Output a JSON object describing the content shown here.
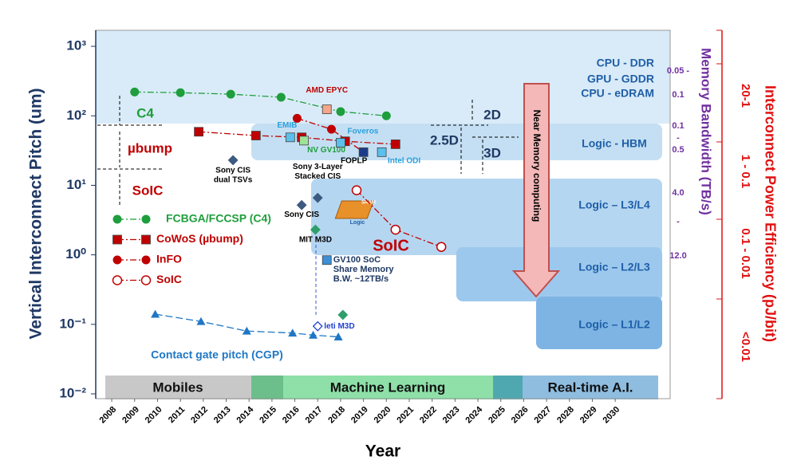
{
  "chart_data": {
    "type": "scatter",
    "x_label": "Year",
    "y_label": "Vertical Interconnect Pitch (um)",
    "xlim": [
      2007.3,
      2032.4
    ],
    "xticks": [
      2008,
      2009,
      2010,
      2011,
      2012,
      2013,
      2014,
      2015,
      2016,
      2017,
      2018,
      2019,
      2020,
      2021,
      2022,
      2023,
      2024,
      2025,
      2026,
      2027,
      2028,
      2029,
      2030
    ],
    "ylim": [
      0.01,
      1700
    ],
    "log_y": true,
    "yticks": [
      {
        "value": 0.01,
        "label": "10⁻²"
      },
      {
        "value": 0.1,
        "label": "10⁻¹"
      },
      {
        "value": 1,
        "label": "10⁰"
      },
      {
        "value": 10,
        "label": "10¹"
      },
      {
        "value": 100,
        "label": "10²"
      },
      {
        "value": 1000,
        "label": "10³"
      }
    ],
    "series": [
      {
        "name": "FCBGA/FCCSP (C4)",
        "color": "#1e9e3c",
        "marker": "circle",
        "x": [
          2009,
          2011,
          2013.2,
          2015.4,
          2018,
          2020
        ],
        "values": [
          220,
          215,
          205,
          185,
          115,
          100
        ]
      },
      {
        "name": "CoWoS (µbump)",
        "color": "#c00000",
        "marker": "square",
        "x": [
          2011.8,
          2014.3,
          2016.3,
          2018.2,
          2020.4
        ],
        "values": [
          59,
          52,
          49,
          43,
          39
        ]
      },
      {
        "name": "InFO",
        "color": "#c00000",
        "marker": "circle",
        "x": [
          2016.1,
          2017.6,
          2019
        ],
        "values": [
          92,
          64,
          30
        ]
      },
      {
        "name": "SoIC",
        "color": "#c00000",
        "marker": "open-circle",
        "x": [
          2018.7,
          2020.4,
          2022.4
        ],
        "values": [
          8.5,
          2.3,
          1.3
        ]
      },
      {
        "name": "Contact gate pitch (CGP)",
        "color": "#1f77c4",
        "marker": "triangle",
        "x": [
          2009.9,
          2011.9,
          2013.9,
          2015.9,
          2016.8,
          2017.9
        ],
        "values": [
          0.14,
          0.11,
          0.08,
          0.075,
          0.07,
          0.066
        ]
      }
    ],
    "points": [
      {
        "label": [
          "AMD EPYC"
        ],
        "x": 2017.4,
        "value": 124,
        "marker": "square",
        "color": "#f4a58a",
        "label_color": "#c00000"
      },
      {
        "label": [
          "EMIB"
        ],
        "x": 2015.8,
        "value": 49,
        "marker": "square",
        "color": "#5bc0eb",
        "label_color": "#2aa0dc"
      },
      {
        "label": [
          "NV GV100"
        ],
        "x": 2016.4,
        "value": 44,
        "marker": "square",
        "color": "#9fe29a",
        "label_color": "#1e9e3c"
      },
      {
        "label": [
          "Foveros"
        ],
        "x": 2018,
        "value": 41,
        "marker": "square",
        "color": "#5bc0eb",
        "label_color": "#2aa0dc"
      },
      {
        "label": [
          "FOPLP"
        ],
        "x": 2019,
        "value": 30,
        "marker": "square",
        "color": "#1a3a8a",
        "label_color": "#000000"
      },
      {
        "label": [
          "Intel ODI"
        ],
        "x": 2019.8,
        "value": 30,
        "marker": "square",
        "color": "#5bc0eb",
        "label_color": "#2aa0dc"
      },
      {
        "label": [
          "Sony CIS",
          "dual TSVs"
        ],
        "x": 2013.3,
        "value": 23,
        "marker": "diamond",
        "color": "#3d5a80",
        "label_color": "#000000"
      },
      {
        "label": [
          "Sony 3-Layer",
          "Stacked CIS"
        ],
        "x": 2017,
        "value": 6.6,
        "marker": "diamond",
        "color": "#3d5a80",
        "label_color": "#000000"
      },
      {
        "label": [
          "Sony CIS"
        ],
        "x": 2016.3,
        "value": 5.2,
        "marker": "diamond",
        "color": "#3d5a80",
        "label_color": "#000000"
      },
      {
        "label": [
          "MIT M3D"
        ],
        "x": 2016.9,
        "value": 2.3,
        "marker": "diamond",
        "color": "#2e9e6b",
        "label_color": "#000000"
      },
      {
        "label": [
          "GV100 SoC",
          "Share Memory",
          "B.W. ~12TB/s"
        ],
        "x": 2017.4,
        "value": 0.84,
        "marker": "square",
        "color": "#3d8fd6",
        "label_color": "#1f3864"
      },
      {
        "label": [
          "leti M3D"
        ],
        "x": 2017,
        "value": 0.094,
        "marker": "open-diamond",
        "color": "#1f3fd0",
        "label_color": "#1f3fd0"
      },
      {
        "label": null,
        "x": 2018.1,
        "value": 0.137,
        "marker": "diamond",
        "color": "#2e9e6b",
        "label_color": null
      }
    ],
    "region_labels": [
      "CPU -     DDR",
      "GPU -   GDDR",
      "CPU - eDRAM",
      "Logic - HBM",
      "Logic – L3/L4",
      "Logic – L2/L3",
      "Logic – L1/L2"
    ],
    "timeline": [
      "Mobiles",
      "Machine Learning",
      "Real-time A.I."
    ],
    "annotations": [
      "C4",
      "µbump",
      "SoIC",
      "2D",
      "2.5D",
      "3D",
      "Near Memory computing",
      "SoIC",
      "SRAM",
      "Logic"
    ],
    "bandwidth_axis": {
      "title": "Memory Bandwidth  (TB/s)",
      "labels": [
        "0.05 -",
        "0.1",
        "0.1",
        "-",
        "0.5",
        "4.0",
        "-",
        "12.0"
      ]
    },
    "efficiency_axis": {
      "title": "Interconnect Power Efficiency (pJ/bit)",
      "labels": [
        "20-1",
        "1 - 0.1",
        "0.1 - 0.01",
        "<0.01"
      ]
    }
  }
}
